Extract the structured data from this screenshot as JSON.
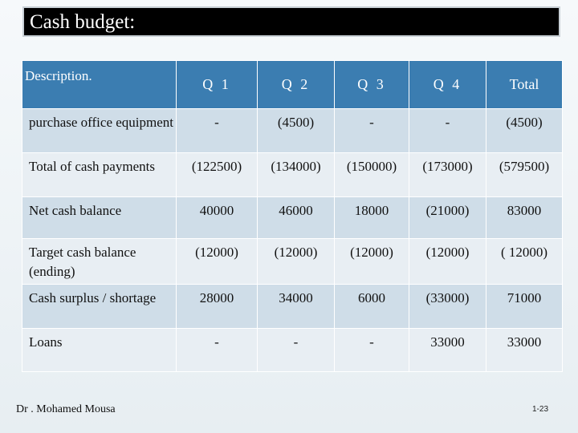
{
  "title": "Cash budget:",
  "table": {
    "headers": [
      "Description.",
      "Q 1",
      "Q 2",
      "Q 3",
      "Q 4",
      "Total"
    ],
    "rows": [
      {
        "label": "purchase office equipment",
        "values": [
          "-",
          "(4500)",
          "-",
          "-",
          "(4500)"
        ]
      },
      {
        "label": "Total of cash payments",
        "values": [
          "(122500)",
          "(134000)",
          "(150000)",
          "(173000)",
          "(579500)"
        ]
      },
      {
        "label": "Net cash balance",
        "values": [
          "40000",
          "46000",
          "18000",
          "(21000)",
          "83000"
        ]
      },
      {
        "label": "Target cash balance (ending)",
        "values": [
          "(12000)",
          "(12000)",
          "(12000)",
          "(12000)",
          "( 12000)"
        ]
      },
      {
        "label": "Cash surplus / shortage",
        "values": [
          "28000",
          "34000",
          "6000",
          "(33000)",
          "71000"
        ]
      },
      {
        "label": "Loans",
        "values": [
          "-",
          "-",
          "-",
          "33000",
          "33000"
        ]
      }
    ]
  },
  "footer": {
    "author": "Dr . Mohamed Mousa",
    "page": "1-23"
  }
}
